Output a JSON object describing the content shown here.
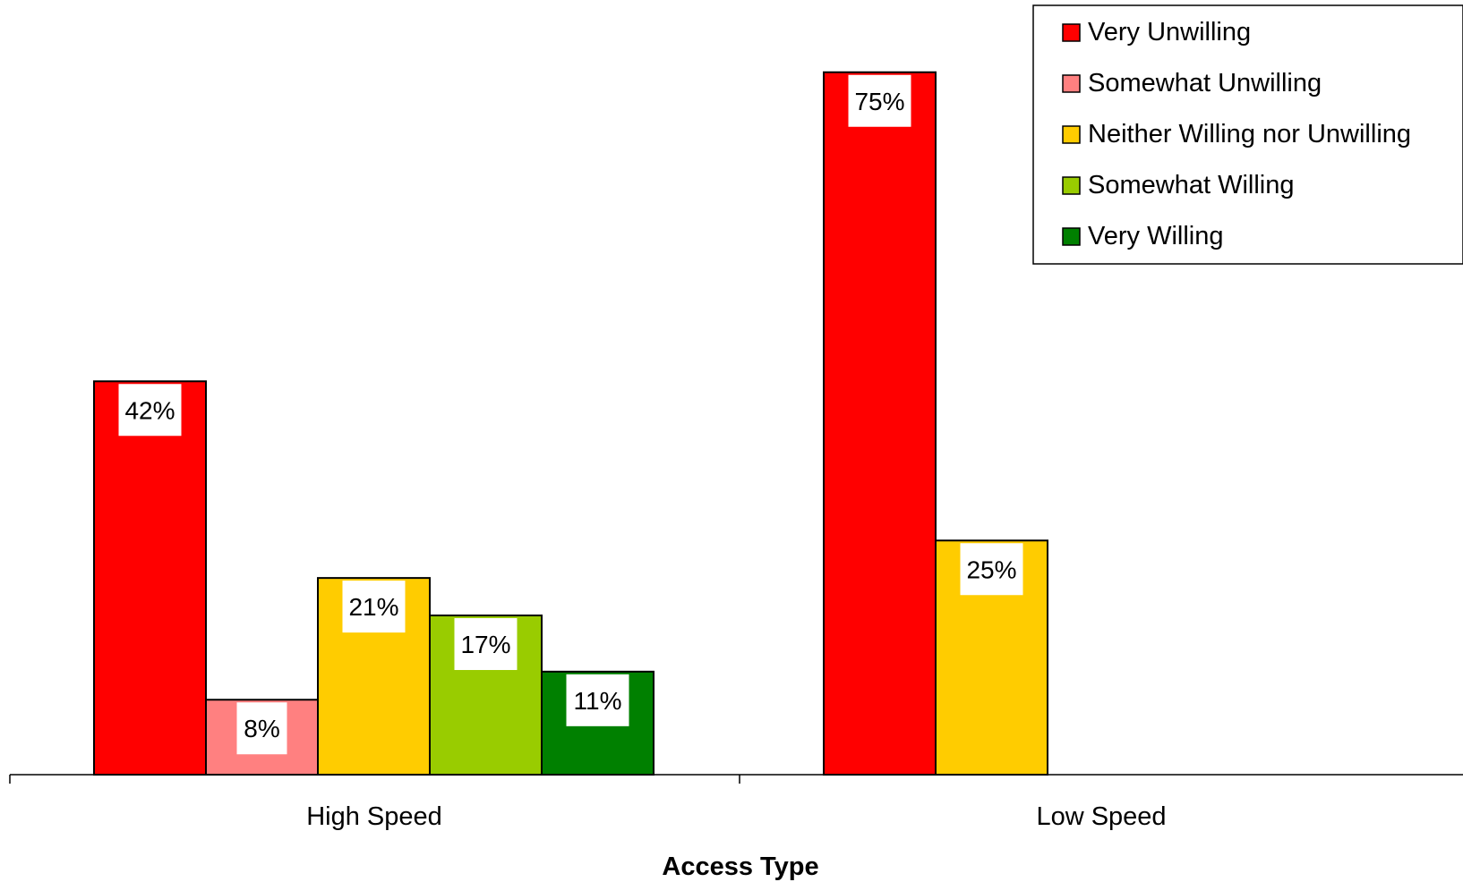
{
  "chart_data": {
    "type": "bar",
    "xlabel": "Access Type",
    "ylabel": "",
    "ylim": [
      0,
      80
    ],
    "grid": false,
    "legend_position": "top-right",
    "categories": [
      "High Speed",
      "Low Speed"
    ],
    "series": [
      {
        "name": "Very Unwilling",
        "color": "#ff0000",
        "values": [
          42,
          75
        ],
        "labels": [
          "42%",
          "75%"
        ]
      },
      {
        "name": "Somewhat Unwilling",
        "color": "#ff8080",
        "values": [
          8,
          0
        ],
        "labels": [
          "8%",
          ""
        ]
      },
      {
        "name": "Neither Willing nor Unwilling",
        "color": "#ffcc00",
        "values": [
          21,
          25
        ],
        "labels": [
          "21%",
          "25%"
        ]
      },
      {
        "name": "Somewhat Willing",
        "color": "#99cc00",
        "values": [
          17,
          0
        ],
        "labels": [
          "17%",
          ""
        ]
      },
      {
        "name": "Very Willing",
        "color": "#008000",
        "values": [
          11,
          0
        ],
        "labels": [
          "11%",
          ""
        ]
      }
    ]
  }
}
